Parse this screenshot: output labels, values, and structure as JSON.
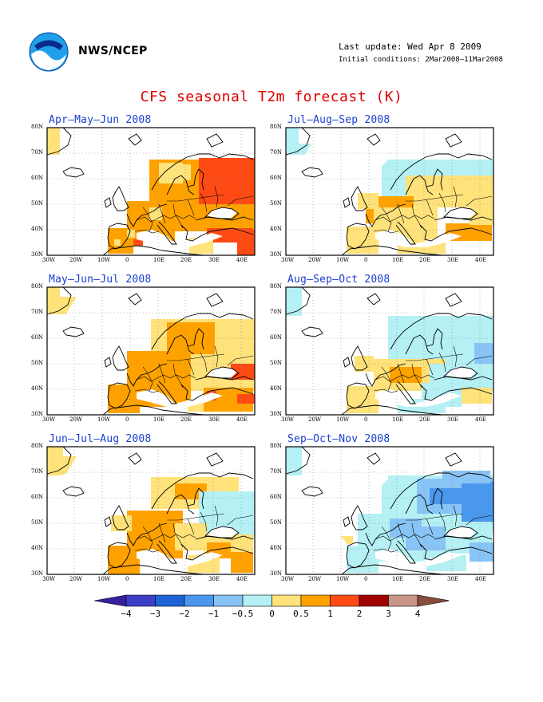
{
  "header": {
    "org": "NWS/NCEP",
    "logo_icon": "noaa-logo-icon",
    "last_update": "Last update: Wed Apr 8 2009",
    "initial_conditions": "Initial conditions: 2Mar2008–11Mar2008"
  },
  "title": "CFS seasonal T2m forecast (K)",
  "axes": {
    "lat_labels": [
      "80N",
      "70N",
      "60N",
      "50N",
      "40N",
      "30N"
    ],
    "lon_labels": [
      "30W",
      "20W",
      "10W",
      "0",
      "10E",
      "20E",
      "30E",
      "40E"
    ]
  },
  "panels": [
    {
      "title": "Apr–May–Jun 2008",
      "scheme": "warm_strong"
    },
    {
      "title": "Jul–Aug–Sep 2008",
      "scheme": "mixed_light"
    },
    {
      "title": "May–Jun–Jul 2008",
      "scheme": "warm_mid"
    },
    {
      "title": "Aug–Sep–Oct 2008",
      "scheme": "cool_light"
    },
    {
      "title": "Jun–Jul–Aug 2008",
      "scheme": "warm_west_cool_east"
    },
    {
      "title": "Sep–Oct–Nov 2008",
      "scheme": "cool"
    }
  ],
  "colorbar": {
    "ticks": [
      "−4",
      "−3",
      "−2",
      "−1",
      "−0.5",
      "0",
      "0.5",
      "1",
      "2",
      "3",
      "4"
    ],
    "colors": [
      "#3a1ea0",
      "#3b3fc6",
      "#1f64d6",
      "#4a98ee",
      "#88c4f5",
      "#b4f0f4",
      "#ffe27a",
      "#ffa200",
      "#ff4a14",
      "#a00000",
      "#c99688",
      "#8a4c3c"
    ]
  }
}
